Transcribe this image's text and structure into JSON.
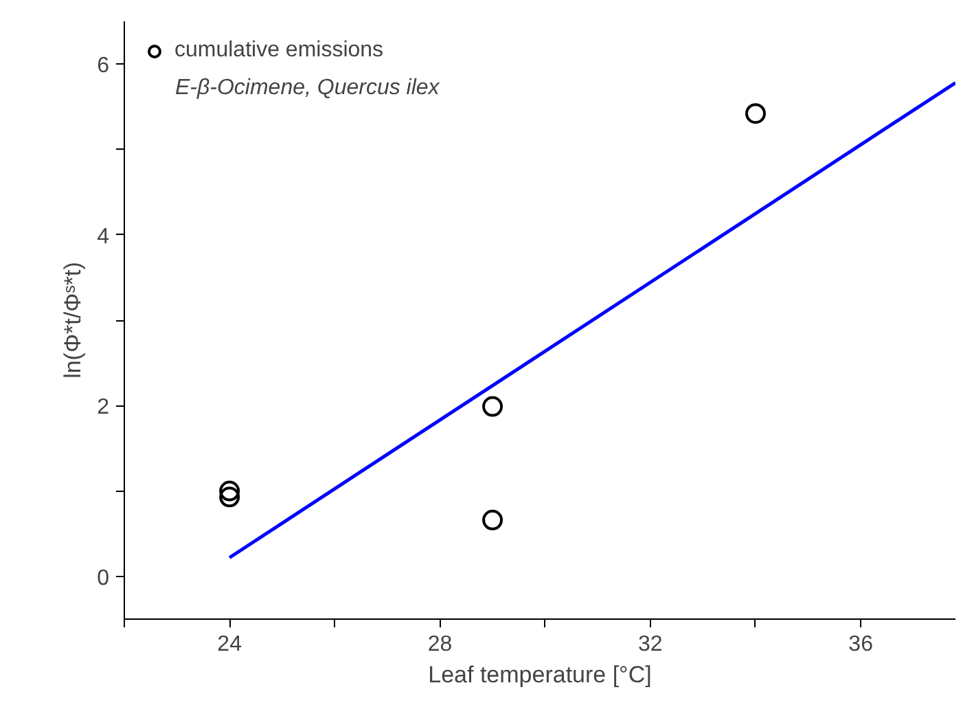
{
  "chart_data": {
    "type": "scatter",
    "xlabel": "Leaf temperature [°C]",
    "ylabel": "ln(Φ*t/Φˢ*t)",
    "xlim": [
      22,
      37.8
    ],
    "ylim": [
      -0.5,
      6.5
    ],
    "xticks": [
      {
        "value": 22,
        "label": null
      },
      24,
      {
        "value": 26,
        "label": null
      },
      28,
      {
        "value": 30,
        "label": null
      },
      32,
      {
        "value": 34,
        "label": null
      },
      36
    ],
    "yticks": [
      0,
      {
        "value": 1,
        "label": null
      },
      2,
      {
        "value": 3,
        "label": null
      },
      4,
      {
        "value": 5,
        "label": null
      },
      6
    ],
    "grid": false,
    "legend": "top left",
    "annotations": [
      "E-β-Ocimene, Quercus ilex"
    ],
    "series": [
      {
        "name": "cumulative emissions",
        "color": "#000000",
        "x": [
          24,
          24,
          29,
          29,
          34
        ],
        "values": [
          0.93,
          1.0,
          1.99,
          0.66,
          5.42
        ]
      },
      {
        "type": "line",
        "marker": "none",
        "color": "#0000ff",
        "line_style": "solid",
        "x": [
          24,
          37.8
        ],
        "values": [
          0.22,
          5.78
        ]
      }
    ]
  }
}
